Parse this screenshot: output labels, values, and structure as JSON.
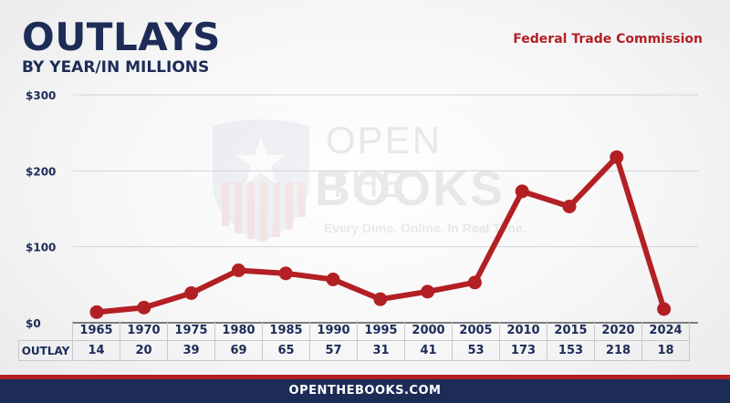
{
  "header": {
    "title": "OUTLAYS",
    "subtitle": "BY YEAR/IN MILLIONS",
    "agency": "Federal Trade Commission"
  },
  "watermark": {
    "line1": "OPEN THE",
    "line2": "BOOKS",
    "tagline": "Every Dime. Online. In Real Time."
  },
  "table": {
    "row_label": "OUTLAY"
  },
  "footer": {
    "site": "OPENTHEBOOKS.COM"
  },
  "colors": {
    "line": "#b32024",
    "navy": "#1d2c57"
  },
  "chart_data": {
    "type": "line",
    "x": [
      "1965",
      "1970",
      "1975",
      "1980",
      "1985",
      "1990",
      "1995",
      "2000",
      "2005",
      "2010",
      "2015",
      "2020",
      "2024"
    ],
    "series": [
      {
        "values": [
          14,
          20,
          39,
          69,
          65,
          57,
          31,
          41,
          53,
          173,
          153,
          218,
          18
        ]
      }
    ],
    "yticks": [
      "$0",
      "$100",
      "$200",
      "$300"
    ],
    "ylim": [
      0,
      300
    ],
    "grid": true
  }
}
